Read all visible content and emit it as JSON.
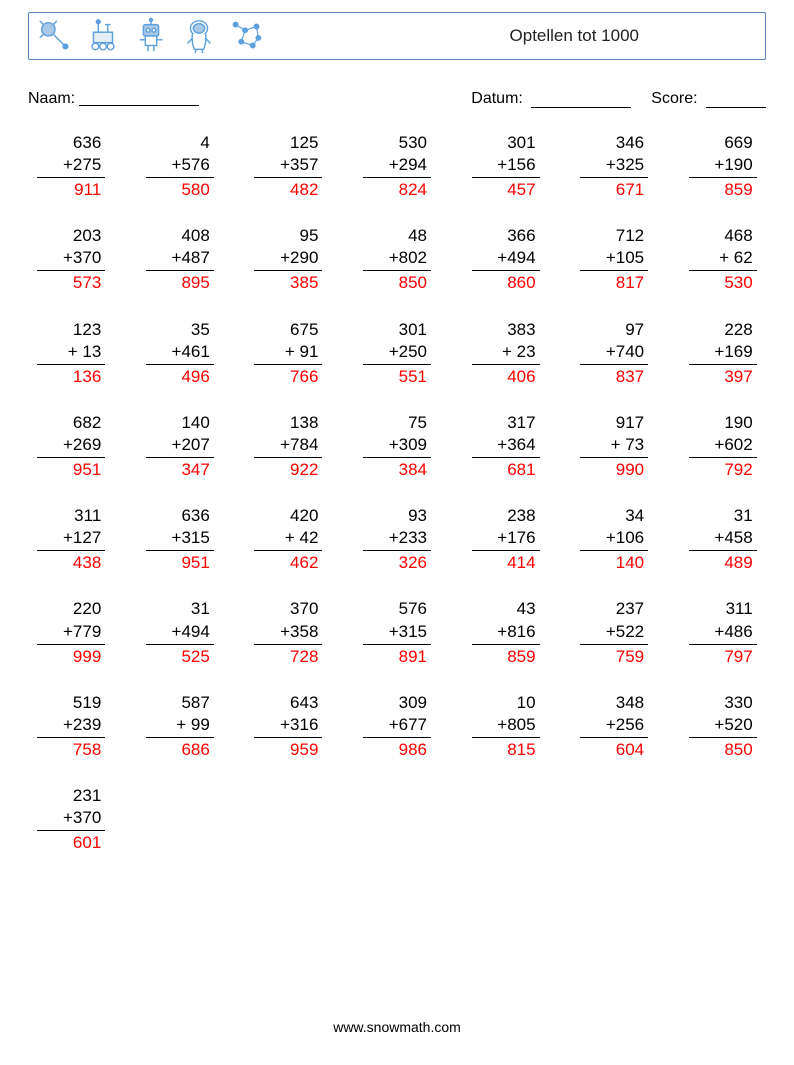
{
  "header": {
    "title": "Optellen tot 1000",
    "border_color": "#5a85b8",
    "icon_colors": {
      "stroke": "#5da0dd",
      "accent": "#6aa6da",
      "light": "#a9c8e8"
    }
  },
  "meta": {
    "naam_label": "Naam:",
    "datum_label": "Datum:",
    "score_label": "Score:"
  },
  "style": {
    "answer_color": "#ff0000",
    "text_color": "#000000",
    "background_color": "#ffffff",
    "font_size_problem": 17,
    "font_size_meta": 16,
    "columns": 7,
    "rows": 8,
    "problem_width": 68
  },
  "problems": [
    {
      "a": 636,
      "b": 275,
      "ans": 911
    },
    {
      "a": 4,
      "b": 576,
      "ans": 580
    },
    {
      "a": 125,
      "b": 357,
      "ans": 482
    },
    {
      "a": 530,
      "b": 294,
      "ans": 824
    },
    {
      "a": 301,
      "b": 156,
      "ans": 457
    },
    {
      "a": 346,
      "b": 325,
      "ans": 671
    },
    {
      "a": 669,
      "b": 190,
      "ans": 859
    },
    {
      "a": 203,
      "b": 370,
      "ans": 573
    },
    {
      "a": 408,
      "b": 487,
      "ans": 895
    },
    {
      "a": 95,
      "b": 290,
      "ans": 385
    },
    {
      "a": 48,
      "b": 802,
      "ans": 850
    },
    {
      "a": 366,
      "b": 494,
      "ans": 860
    },
    {
      "a": 712,
      "b": 105,
      "ans": 817
    },
    {
      "a": 468,
      "b": 62,
      "ans": 530
    },
    {
      "a": 123,
      "b": 13,
      "ans": 136
    },
    {
      "a": 35,
      "b": 461,
      "ans": 496
    },
    {
      "a": 675,
      "b": 91,
      "ans": 766
    },
    {
      "a": 301,
      "b": 250,
      "ans": 551
    },
    {
      "a": 383,
      "b": 23,
      "ans": 406
    },
    {
      "a": 97,
      "b": 740,
      "ans": 837
    },
    {
      "a": 228,
      "b": 169,
      "ans": 397
    },
    {
      "a": 682,
      "b": 269,
      "ans": 951
    },
    {
      "a": 140,
      "b": 207,
      "ans": 347
    },
    {
      "a": 138,
      "b": 784,
      "ans": 922
    },
    {
      "a": 75,
      "b": 309,
      "ans": 384
    },
    {
      "a": 317,
      "b": 364,
      "ans": 681
    },
    {
      "a": 917,
      "b": 73,
      "ans": 990
    },
    {
      "a": 190,
      "b": 602,
      "ans": 792
    },
    {
      "a": 311,
      "b": 127,
      "ans": 438
    },
    {
      "a": 636,
      "b": 315,
      "ans": 951
    },
    {
      "a": 420,
      "b": 42,
      "ans": 462
    },
    {
      "a": 93,
      "b": 233,
      "ans": 326
    },
    {
      "a": 238,
      "b": 176,
      "ans": 414
    },
    {
      "a": 34,
      "b": 106,
      "ans": 140
    },
    {
      "a": 31,
      "b": 458,
      "ans": 489
    },
    {
      "a": 220,
      "b": 779,
      "ans": 999
    },
    {
      "a": 31,
      "b": 494,
      "ans": 525
    },
    {
      "a": 370,
      "b": 358,
      "ans": 728
    },
    {
      "a": 576,
      "b": 315,
      "ans": 891
    },
    {
      "a": 43,
      "b": 816,
      "ans": 859
    },
    {
      "a": 237,
      "b": 522,
      "ans": 759
    },
    {
      "a": 311,
      "b": 486,
      "ans": 797
    },
    {
      "a": 519,
      "b": 239,
      "ans": 758
    },
    {
      "a": 587,
      "b": 99,
      "ans": 686
    },
    {
      "a": 643,
      "b": 316,
      "ans": 959
    },
    {
      "a": 309,
      "b": 677,
      "ans": 986
    },
    {
      "a": 10,
      "b": 805,
      "ans": 815
    },
    {
      "a": 348,
      "b": 256,
      "ans": 604
    },
    {
      "a": 330,
      "b": 520,
      "ans": 850
    },
    {
      "a": 231,
      "b": 370,
      "ans": 601
    }
  ],
  "footer": {
    "text": "www.snowmath.com"
  }
}
